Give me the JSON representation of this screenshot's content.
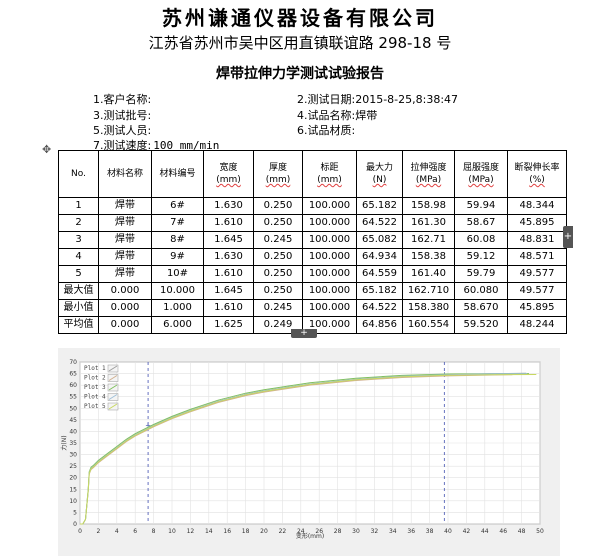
{
  "header": {
    "company": "苏州谦通仪器设备有限公司",
    "address": "江苏省苏州市吴中区用直镇联谊路 298-18 号",
    "report_title": "焊带拉伸力学测试试验报告"
  },
  "info": {
    "client_label": "1.客户名称:",
    "client_value": "",
    "date_label": "2.测试日期:",
    "date_value": "2015-8-25,8:38:47",
    "batch_label": "3.测试批号:",
    "batch_value": "",
    "sample_label": "4.试品名称:",
    "sample_value": "焊带",
    "tester_label": "5.测试人员:",
    "tester_value": "",
    "material_label": "6.试品材质:",
    "material_value": "",
    "speed_label": "7.测试速度:",
    "speed_value": "100 mm/min"
  },
  "icons": {
    "move": "move-cross-icon",
    "expand_right": "plus-icon",
    "expand_bottom": "plus-icon"
  },
  "table": {
    "headers": [
      {
        "name": "No.",
        "unit": ""
      },
      {
        "name": "材料名称",
        "unit": ""
      },
      {
        "name": "材料编号",
        "unit": ""
      },
      {
        "name": "宽度",
        "unit": "(mm)"
      },
      {
        "name": "厚度",
        "unit": "(mm)"
      },
      {
        "name": "标距",
        "unit": "(mm)"
      },
      {
        "name": "最大力",
        "unit": "(N)"
      },
      {
        "name": "拉伸强度",
        "unit": "(MPa)"
      },
      {
        "name": "屈服强度",
        "unit": "(MPa)"
      },
      {
        "name": "断裂伸长率",
        "unit": "(%)"
      }
    ],
    "rows": [
      [
        "1",
        "焊带",
        "6#",
        "1.630",
        "0.250",
        "100.000",
        "65.182",
        "158.98",
        "59.94",
        "48.344"
      ],
      [
        "2",
        "焊带",
        "7#",
        "1.610",
        "0.250",
        "100.000",
        "64.522",
        "161.30",
        "58.67",
        "45.895"
      ],
      [
        "3",
        "焊带",
        "8#",
        "1.645",
        "0.245",
        "100.000",
        "65.082",
        "162.71",
        "60.08",
        "48.831"
      ],
      [
        "4",
        "焊带",
        "9#",
        "1.630",
        "0.250",
        "100.000",
        "64.934",
        "158.38",
        "59.12",
        "48.571"
      ],
      [
        "5",
        "焊带",
        "10#",
        "1.610",
        "0.250",
        "100.000",
        "64.559",
        "161.40",
        "59.79",
        "49.577"
      ],
      [
        "最大值",
        "0.000",
        "10.000",
        "1.645",
        "0.250",
        "100.000",
        "65.182",
        "162.710",
        "60.080",
        "49.577"
      ],
      [
        "最小值",
        "0.000",
        "1.000",
        "1.610",
        "0.245",
        "100.000",
        "64.522",
        "158.380",
        "58.670",
        "45.895"
      ],
      [
        "平均值",
        "0.000",
        "6.000",
        "1.625",
        "0.249",
        "100.000",
        "64.856",
        "160.554",
        "59.520",
        "48.244"
      ]
    ]
  },
  "chart_data": {
    "type": "line",
    "title": "",
    "xlabel": "变形(mm)",
    "ylabel": "力(N)",
    "xlim": [
      0,
      50
    ],
    "ylim": [
      0,
      70
    ],
    "xticks": [
      0,
      2,
      4,
      6,
      8,
      10,
      12,
      14,
      16,
      18,
      20,
      22,
      24,
      26,
      28,
      30,
      32,
      34,
      36,
      38,
      40,
      42,
      44,
      46,
      48,
      50
    ],
    "yticks": [
      0,
      5,
      10,
      15,
      20,
      25,
      30,
      35,
      40,
      45,
      50,
      55,
      60,
      65,
      70
    ],
    "grid": true,
    "legend_position": "top-left",
    "markers": [
      {
        "x": 7.4,
        "y": 42.5
      },
      {
        "x": 39.6,
        "y": 64.6
      }
    ],
    "series": [
      {
        "name": "Plot 1",
        "color": "#9e9e9e",
        "x": [
          0,
          0.3,
          0.6,
          0.9,
          1.0,
          1.2,
          1.5,
          2,
          3,
          4,
          5,
          6,
          7,
          8,
          10,
          12,
          15,
          18,
          20,
          25,
          30,
          35,
          40,
          45,
          48.5
        ],
        "y": [
          0,
          0,
          2,
          15,
          22,
          24,
          25,
          27,
          30,
          33,
          36,
          38.5,
          40.5,
          42.5,
          46,
          49,
          53,
          56,
          57.5,
          60.5,
          62.5,
          63.8,
          64.5,
          65.0,
          65.1
        ]
      },
      {
        "name": "Plot 2",
        "color": "#d0b090",
        "x": [
          0,
          0.3,
          0.6,
          0.9,
          1.0,
          1.2,
          1.5,
          2,
          3,
          4,
          5,
          6,
          7,
          8,
          10,
          12,
          15,
          18,
          20,
          25,
          30,
          35,
          40,
          45,
          47
        ],
        "y": [
          0,
          0,
          2,
          14.5,
          21.5,
          23.5,
          24.5,
          26.5,
          29.5,
          32.5,
          35.5,
          38,
          40,
          42,
          45.5,
          48.5,
          52.5,
          55.5,
          57,
          60,
          62,
          63.3,
          64.0,
          64.4,
          64.5
        ]
      },
      {
        "name": "Plot 3",
        "color": "#80c060",
        "x": [
          0,
          0.3,
          0.6,
          0.9,
          1.0,
          1.2,
          1.5,
          2,
          3,
          4,
          5,
          6,
          7,
          8,
          10,
          12,
          15,
          18,
          20,
          25,
          30,
          35,
          40,
          45,
          48.8
        ],
        "y": [
          0,
          0,
          2,
          15.5,
          22.5,
          24.5,
          25.5,
          27.5,
          30.5,
          33.5,
          36.5,
          39,
          41,
          43,
          46.5,
          49.5,
          53.5,
          56.5,
          58,
          61,
          63,
          64.2,
          64.8,
          65.0,
          65.0
        ]
      },
      {
        "name": "Plot 4",
        "color": "#a0c0d8",
        "x": [
          0,
          0.3,
          0.6,
          0.9,
          1.0,
          1.2,
          1.5,
          2,
          3,
          4,
          5,
          6,
          7,
          8,
          10,
          12,
          15,
          18,
          20,
          25,
          30,
          35,
          40,
          45,
          48.6
        ],
        "y": [
          0,
          0,
          2,
          15,
          22,
          24,
          25,
          27,
          30,
          33,
          36,
          38.5,
          40.5,
          42.5,
          46,
          49,
          53,
          56,
          57.5,
          60.5,
          62.5,
          63.8,
          64.5,
          64.9,
          64.9
        ]
      },
      {
        "name": "Plot 5",
        "color": "#c8d860",
        "x": [
          0,
          0.3,
          0.6,
          0.9,
          1.0,
          1.2,
          1.5,
          2,
          3,
          4,
          5,
          6,
          7,
          8,
          10,
          12,
          15,
          18,
          20,
          25,
          30,
          35,
          40,
          45,
          49.6
        ],
        "y": [
          0,
          0,
          2,
          14.8,
          21.8,
          23.8,
          24.8,
          26.8,
          29.8,
          32.8,
          35.8,
          38.3,
          40.3,
          42.3,
          45.8,
          48.8,
          52.8,
          55.8,
          57.3,
          60.3,
          62.3,
          63.6,
          64.3,
          64.5,
          64.6
        ]
      }
    ]
  }
}
